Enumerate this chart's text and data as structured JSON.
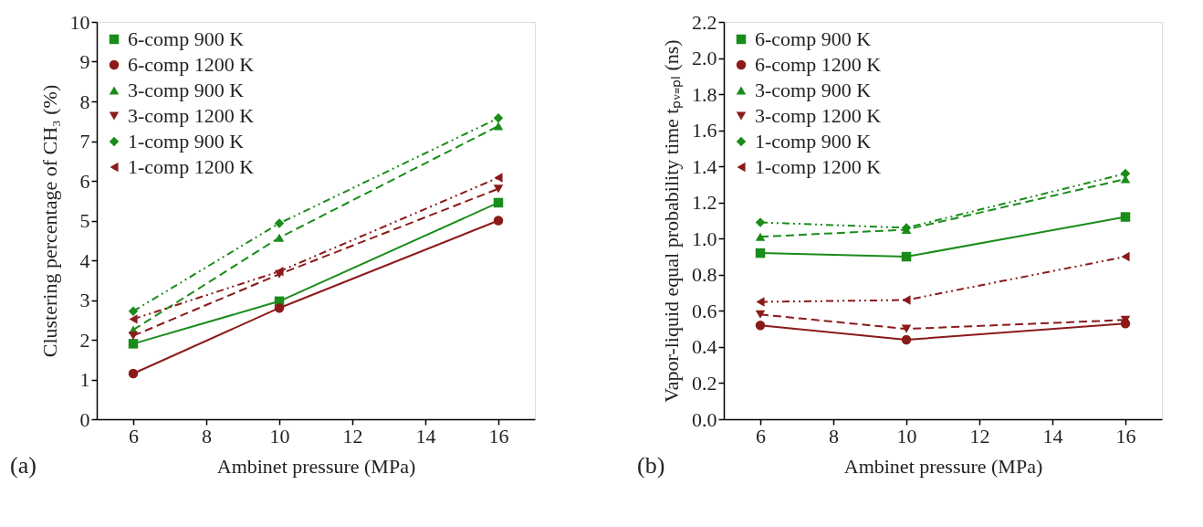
{
  "chart_data": [
    {
      "type": "line",
      "xlabel": "Ambinet pressure (MPa)",
      "ylabel": "Clustering percentage of CH₃ (%)",
      "annotations": [
        "(a)"
      ],
      "x": [
        6,
        10,
        16
      ],
      "xlim": [
        5,
        17
      ],
      "xticks": [
        6,
        8,
        10,
        12,
        14,
        16
      ],
      "ylim": [
        0,
        10
      ],
      "yticks": [
        0,
        1,
        2,
        3,
        4,
        5,
        6,
        7,
        8,
        9,
        10
      ],
      "grid": false,
      "legend": "top left",
      "series": [
        {
          "name": "6-comp 900 K",
          "color": "#1a8c1a",
          "values": [
            1.9,
            2.97,
            5.45
          ],
          "line_style": "solid",
          "marker": "square"
        },
        {
          "name": "6-comp 1200 K",
          "color": "#8b1a1a",
          "values": [
            1.15,
            2.8,
            5.0
          ],
          "line_style": "solid",
          "marker": "circle"
        },
        {
          "name": "3-comp 900 K",
          "color": "#1a8c1a",
          "values": [
            2.25,
            4.57,
            7.38
          ],
          "line_style": "dashed",
          "marker": "triangle"
        },
        {
          "name": "3-comp 1200 K",
          "color": "#8b1a1a",
          "values": [
            2.1,
            3.65,
            5.8
          ],
          "line_style": "dashed",
          "marker": "triangle-down"
        },
        {
          "name": "1-comp 900 K",
          "color": "#1a8c1a",
          "values": [
            2.72,
            4.93,
            7.58
          ],
          "line_style": "dotted",
          "marker": "diamond"
        },
        {
          "name": "1-comp 1200 K",
          "color": "#8b1a1a",
          "values": [
            2.52,
            3.72,
            6.08
          ],
          "line_style": "dotted",
          "marker": "triangle-left"
        }
      ]
    },
    {
      "type": "line",
      "xlabel": "Ambinet pressure (MPa)",
      "ylabel": "Vapor-liquid equal probability time tₚᵥ₌ₚₗ (ns)",
      "annotations": [
        "(b)"
      ],
      "x": [
        6,
        10,
        16
      ],
      "xlim": [
        5,
        17
      ],
      "xticks": [
        6,
        8,
        10,
        12,
        14,
        16
      ],
      "ylim": [
        0,
        2.2
      ],
      "yticks": [
        {
          "value": 0,
          "label": "0.0"
        },
        0.2,
        0.4,
        0.6,
        0.8,
        {
          "value": 1,
          "label": "1.0"
        },
        1.2,
        1.4,
        1.6,
        1.8,
        {
          "value": 2,
          "label": "2.0"
        },
        2.2
      ],
      "grid": false,
      "legend": "top left",
      "series": [
        {
          "name": "6-comp 900 K",
          "color": "#1a8c1a",
          "values": [
            0.92,
            0.9,
            1.12
          ],
          "line_style": "solid",
          "marker": "square"
        },
        {
          "name": "6-comp 1200 K",
          "color": "#8b1a1a",
          "values": [
            0.52,
            0.44,
            0.53
          ],
          "line_style": "solid",
          "marker": "circle"
        },
        {
          "name": "3-comp 900 K",
          "color": "#1a8c1a",
          "values": [
            1.01,
            1.05,
            1.33
          ],
          "line_style": "dashed",
          "marker": "triangle"
        },
        {
          "name": "3-comp 1200 K",
          "color": "#8b1a1a",
          "values": [
            0.58,
            0.5,
            0.55
          ],
          "line_style": "dashed",
          "marker": "triangle-down"
        },
        {
          "name": "1-comp 900 K",
          "color": "#1a8c1a",
          "values": [
            1.09,
            1.06,
            1.36
          ],
          "line_style": "dotted",
          "marker": "diamond"
        },
        {
          "name": "1-comp 1200 K",
          "color": "#8b1a1a",
          "values": [
            0.65,
            0.66,
            0.9
          ],
          "line_style": "dotted",
          "marker": "triangle-left"
        }
      ]
    }
  ]
}
